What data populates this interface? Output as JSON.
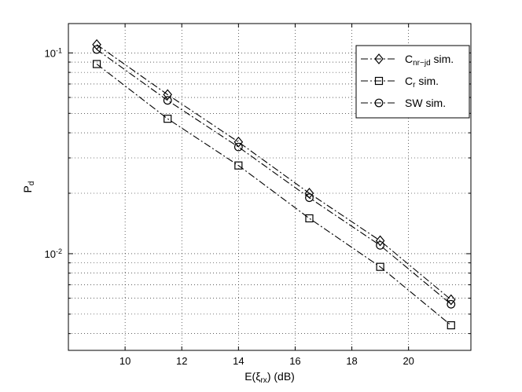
{
  "chart_data": {
    "type": "line",
    "title": "",
    "xlabel": {
      "main": "E(ξ",
      "sub": "rx",
      "tail": ") (dB)"
    },
    "ylabel": {
      "main": "P",
      "sub": "d"
    },
    "x_scale": "linear",
    "y_scale": "log",
    "xlim": [
      8.0,
      22.2
    ],
    "ylim": [
      0.0033,
      0.14
    ],
    "x_ticks": [
      10,
      12,
      14,
      16,
      18,
      20
    ],
    "x_tick_labels": [
      "10",
      "12",
      "14",
      "16",
      "18",
      "20"
    ],
    "y_major_ticks": [
      0.01,
      0.1
    ],
    "y_tick_labels": [
      {
        "base": "10",
        "exp": "-2"
      },
      {
        "base": "10",
        "exp": "-1"
      }
    ],
    "grid": true,
    "legend_position": "top-right",
    "series": [
      {
        "name": {
          "main": "C",
          "sub": "nr−jd",
          "tail": " sim."
        },
        "marker": "diamond",
        "line_style": "dash-dot",
        "x": [
          9,
          11.5,
          14,
          16.5,
          19,
          21.5
        ],
        "y": [
          0.11,
          0.062,
          0.036,
          0.02,
          0.0116,
          0.0059
        ]
      },
      {
        "name": {
          "main": "C",
          "sub": "r",
          "tail": " sim."
        },
        "marker": "square",
        "line_style": "dash-dot",
        "x": [
          9,
          11.5,
          14,
          16.5,
          19,
          21.5
        ],
        "y": [
          0.088,
          0.047,
          0.0275,
          0.015,
          0.0086,
          0.0044
        ]
      },
      {
        "name": {
          "main": "SW sim.",
          "sub": "",
          "tail": ""
        },
        "marker": "circle",
        "line_style": "dash-dot",
        "x": [
          9,
          11.5,
          14,
          16.5,
          19,
          21.5
        ],
        "y": [
          0.104,
          0.058,
          0.034,
          0.019,
          0.011,
          0.0056
        ]
      }
    ]
  }
}
